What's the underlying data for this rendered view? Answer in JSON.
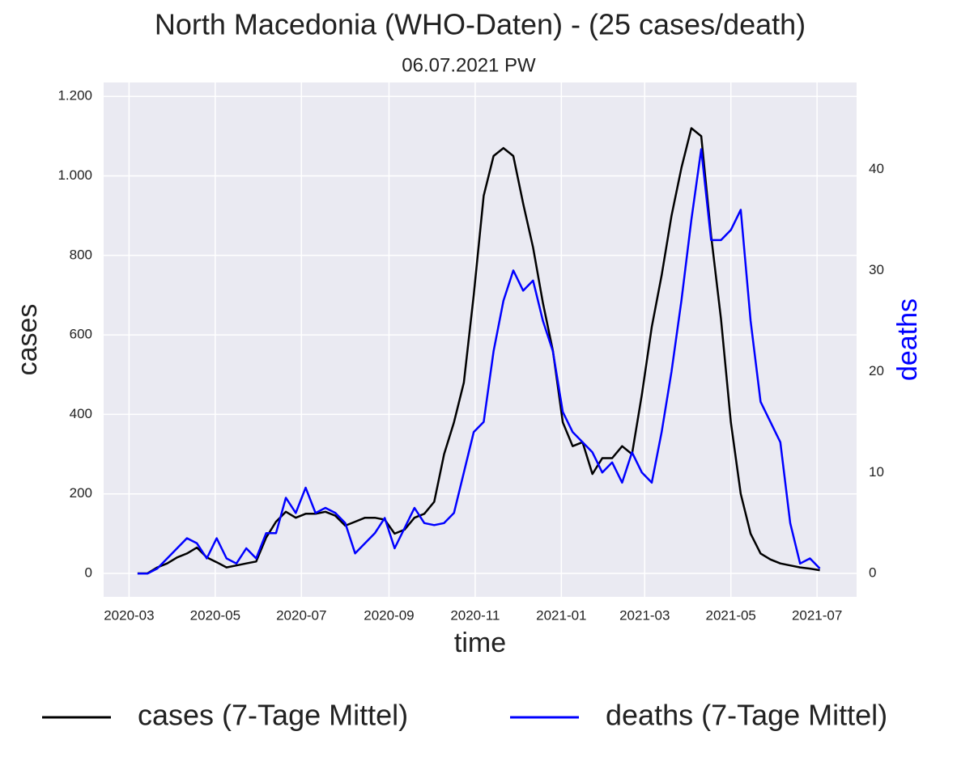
{
  "chart_data": {
    "type": "line",
    "title": "North Macedonia (WHO-Daten) - (25 cases/death)",
    "subtitle": "06.07.2021 PW",
    "x_label": "time",
    "y_label": "cases",
    "y2_label": "deaths",
    "y2_label_color": "#0000ff",
    "grid": true,
    "legend": "bottom",
    "x": [
      "2020-03-07",
      "2020-03-14",
      "2020-03-21",
      "2020-03-28",
      "2020-04-04",
      "2020-04-11",
      "2020-04-18",
      "2020-04-25",
      "2020-05-02",
      "2020-05-09",
      "2020-05-16",
      "2020-05-23",
      "2020-05-30",
      "2020-06-06",
      "2020-06-13",
      "2020-06-20",
      "2020-06-27",
      "2020-07-04",
      "2020-07-11",
      "2020-07-18",
      "2020-07-25",
      "2020-08-01",
      "2020-08-08",
      "2020-08-15",
      "2020-08-22",
      "2020-08-29",
      "2020-09-05",
      "2020-09-12",
      "2020-09-19",
      "2020-09-26",
      "2020-10-03",
      "2020-10-10",
      "2020-10-17",
      "2020-10-24",
      "2020-10-31",
      "2020-11-07",
      "2020-11-14",
      "2020-11-21",
      "2020-11-28",
      "2020-12-05",
      "2020-12-12",
      "2020-12-19",
      "2020-12-26",
      "2021-01-02",
      "2021-01-09",
      "2021-01-16",
      "2021-01-23",
      "2021-01-30",
      "2021-02-06",
      "2021-02-13",
      "2021-02-20",
      "2021-02-27",
      "2021-03-06",
      "2021-03-13",
      "2021-03-20",
      "2021-03-27",
      "2021-04-03",
      "2021-04-10",
      "2021-04-17",
      "2021-04-24",
      "2021-05-01",
      "2021-05-08",
      "2021-05-15",
      "2021-05-22",
      "2021-05-29",
      "2021-06-05",
      "2021-06-12",
      "2021-06-19",
      "2021-06-26",
      "2021-07-03"
    ],
    "series": [
      {
        "name": "cases (7-Tage Mittel)",
        "color": "#000000",
        "values": [
          0,
          0,
          15,
          25,
          40,
          50,
          65,
          40,
          28,
          15,
          20,
          25,
          30,
          90,
          130,
          155,
          140,
          150,
          150,
          155,
          145,
          120,
          130,
          140,
          140,
          135,
          100,
          110,
          140,
          150,
          180,
          300,
          380,
          480,
          700,
          950,
          1050,
          1070,
          1050,
          930,
          820,
          680,
          560,
          380,
          320,
          330,
          250,
          290,
          290,
          320,
          300,
          450,
          620,
          750,
          900,
          1020,
          1120,
          1100,
          850,
          640,
          380,
          200,
          100,
          50,
          35,
          25,
          20,
          15,
          12,
          8
        ]
      },
      {
        "name": "deaths (7-Tage Mittel)",
        "color": "#0000ff",
        "axis": "y2",
        "values": [
          0,
          0,
          0.5,
          1.5,
          2.5,
          3.5,
          3,
          1.5,
          3.5,
          1.5,
          1,
          2.5,
          1.5,
          4,
          4,
          7.5,
          6,
          8.5,
          6,
          6.5,
          6,
          5,
          2,
          3,
          4,
          5.5,
          2.5,
          4.5,
          6.5,
          5,
          4.8,
          5,
          6,
          10,
          14,
          15,
          22,
          27,
          30,
          28,
          29,
          25,
          22,
          16,
          14,
          13,
          12,
          10,
          11,
          9,
          12,
          10,
          9,
          14,
          20,
          27,
          35,
          42,
          33,
          33,
          34,
          36,
          25,
          17,
          15,
          13,
          5,
          1,
          1.5,
          0.5
        ]
      }
    ],
    "xlim": [
      "2020-02-12",
      "2021-07-29"
    ],
    "xticks": [
      {
        "value": "2020-03-01",
        "label": "2020-03"
      },
      {
        "value": "2020-05-01",
        "label": "2020-05"
      },
      {
        "value": "2020-07-01",
        "label": "2020-07"
      },
      {
        "value": "2020-09-01",
        "label": "2020-09"
      },
      {
        "value": "2020-11-01",
        "label": "2020-11"
      },
      {
        "value": "2021-01-01",
        "label": "2021-01"
      },
      {
        "value": "2021-03-01",
        "label": "2021-03"
      },
      {
        "value": "2021-05-01",
        "label": "2021-05"
      },
      {
        "value": "2021-07-01",
        "label": "2021-07"
      }
    ],
    "ylim": [
      -59,
      1235
    ],
    "yticks": [
      0,
      200,
      400,
      600,
      800,
      {
        "value": 1000,
        "label": "1.000"
      },
      {
        "value": 1200,
        "label": "1.200"
      }
    ],
    "y2lim": [
      -2.3,
      48.6
    ],
    "y2ticks": [
      0,
      10,
      20,
      30,
      40
    ]
  }
}
